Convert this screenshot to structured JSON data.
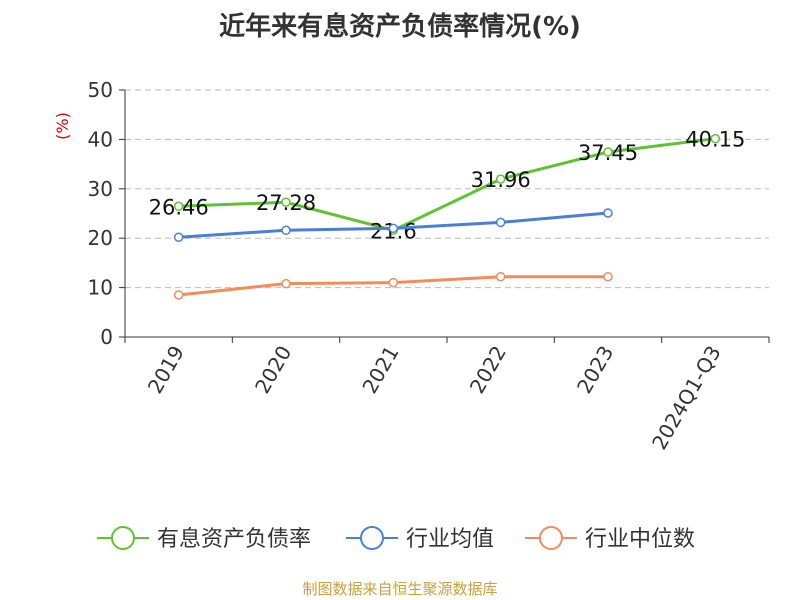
{
  "chart_data": {
    "type": "line",
    "title": "近年来有息资产负债率情况(%)",
    "ylabel": "(%)",
    "categories": [
      "2019",
      "2020",
      "2021",
      "2022",
      "2023",
      "2024Q1-Q3"
    ],
    "ylim": [
      0,
      50
    ],
    "yticks": [
      0,
      10,
      20,
      30,
      40,
      50
    ],
    "grid": true,
    "legend_position": "bottom",
    "series": [
      {
        "name": "有息资产负债率",
        "color": "#5ec330",
        "values": [
          26.46,
          27.28,
          21.6,
          31.96,
          37.45,
          40.15
        ],
        "labels": [
          "26.46",
          "27.28",
          "21.6",
          "31.96",
          "37.45",
          "40.15"
        ]
      },
      {
        "name": "行业均值",
        "color": "#4a7fd6",
        "values": [
          20.2,
          21.6,
          22.0,
          23.2,
          25.1,
          null
        ]
      },
      {
        "name": "行业中位数",
        "color": "#f28c5a",
        "values": [
          8.5,
          10.8,
          11.0,
          12.2,
          12.2,
          null
        ]
      }
    ]
  },
  "footer": {
    "source": "制图数据来自恒生聚源数据库"
  }
}
